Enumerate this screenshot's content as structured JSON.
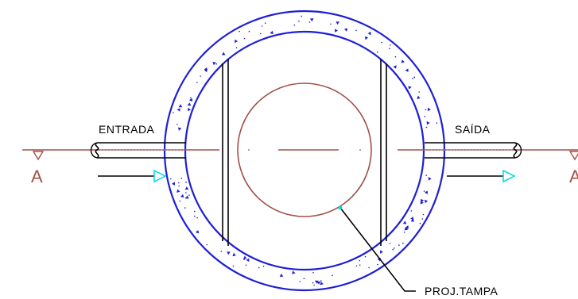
{
  "labels": {
    "inlet": "ENTRADA",
    "outlet": "SAÍDA",
    "cover": "PROJ.TAMPA",
    "section_left": "A",
    "section_right": "A"
  },
  "colors": {
    "wall": "#1f1fd6",
    "cover": "#a0524a",
    "section": "#a0524a",
    "arrow_head": "#00d6e6",
    "line": "#000000",
    "background": "#ffffff"
  }
}
